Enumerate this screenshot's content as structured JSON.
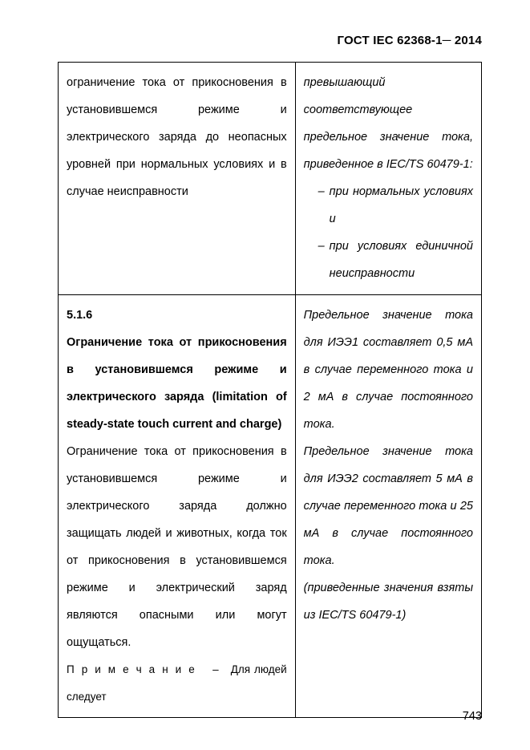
{
  "header": {
    "standard": "ГОСТ IEC 62368-1",
    "dash": "─",
    "year": "2014"
  },
  "row1": {
    "left_text": "ограничение тока от прикосновения в установившемся режиме и электрического заряда до неопасных уровней при нормальных условиях и в случае неисправности",
    "right_intro": "превышающий соответствующее предельное значение тока, приведенное в IEC/TS 60479-1:",
    "right_bullet1": "при нормальных условиях и",
    "right_bullet2": "при условиях единичной неисправности"
  },
  "row2": {
    "sect_num": "5.1.6",
    "sect_title": "Ограничение тока от прикосновения в установившемся режиме и электрического заряда (limitation of steady-state touch current and charge)",
    "left_body": "Ограничение тока от прикосновения в установившемся режиме и электрического заряда должно защищать людей и животных, когда ток от прикосновения в установившемся режиме и электрический заряд являются опасными или могут ощущаться.",
    "note_label": "П р и м е ч а н и е",
    "note_dash": "–",
    "note_rest": "Для людей следует",
    "right_p1": "Предельное значение тока для ИЭЭ1 составляет 0,5 мА в случае переменного тока и 2 мА в случае постоянного тока.",
    "right_p2": "Предельное значение тока для ИЭЭ2 составляет 5 мА в случае переменного тока и 25 мА в случае постоянного тока.",
    "right_p3": "(приведенные значения взяты из IEC/TS 60479-1)"
  },
  "page_number": "743"
}
